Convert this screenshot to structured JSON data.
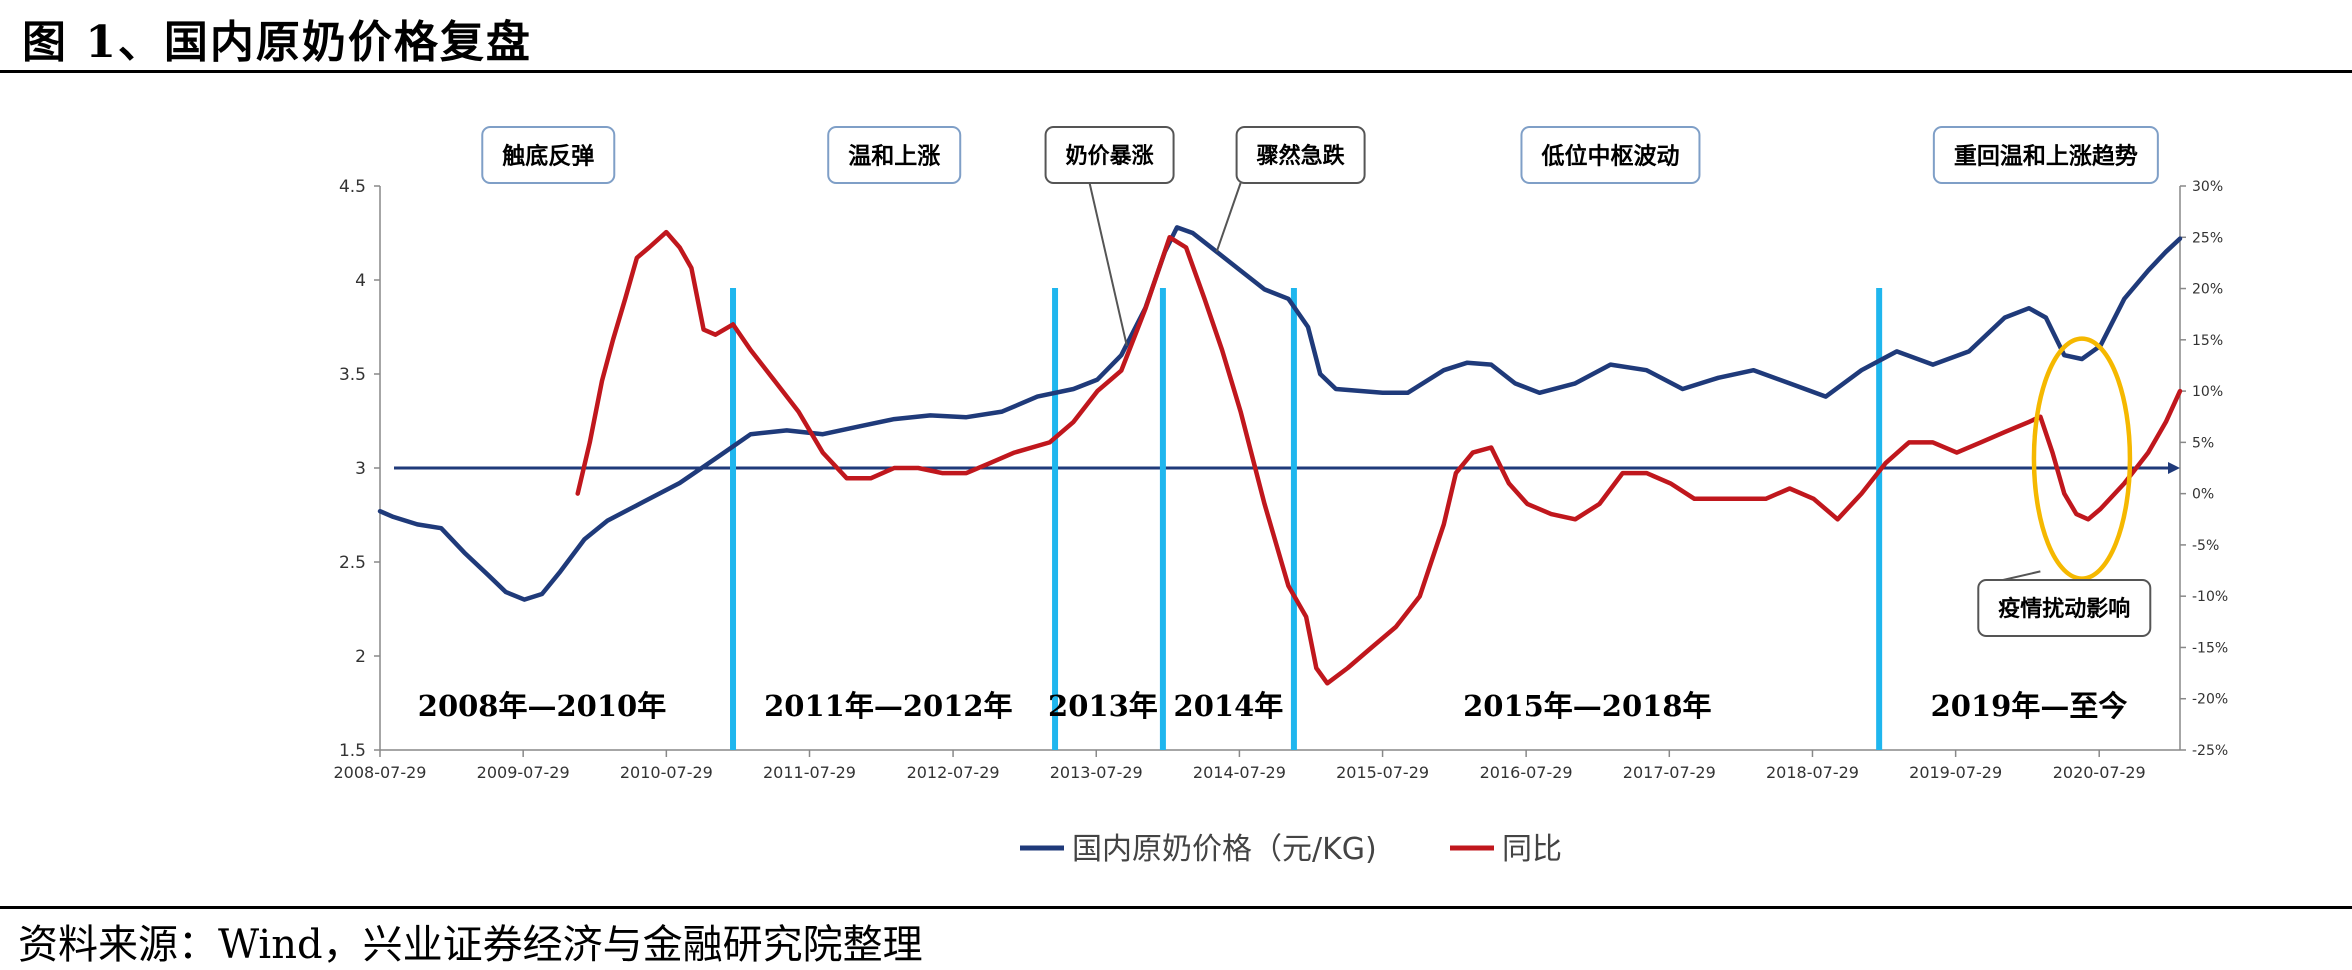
{
  "figure_title": "图 1、国内原奶价格复盘",
  "source_note": "资料来源：Wind，兴业证券经济与金融研究院整理",
  "chart_data": {
    "type": "line",
    "title": "",
    "xlabel": "",
    "ylabel": "",
    "x_tick_labels": [
      "2008-07-29",
      "2009-07-29",
      "2010-07-29",
      "2011-07-29",
      "2012-07-29",
      "2013-07-29",
      "2014-07-29",
      "2015-07-29",
      "2016-07-29",
      "2017-07-29",
      "2018-07-29",
      "2019-07-29",
      "2020-07-29"
    ],
    "xlim": [
      "2008-07-29",
      "2021-02-20"
    ],
    "y_left": {
      "ylim": [
        1.5,
        4.5
      ],
      "ticks": [
        "1.5",
        "2",
        "2.5",
        "3",
        "3.5",
        "4",
        "4.5"
      ]
    },
    "y_right": {
      "ylim": [
        -25,
        30
      ],
      "ticks": [
        "-25%",
        "-20%",
        "-15%",
        "-10%",
        "-5%",
        "0%",
        "5%",
        "10%",
        "15%",
        "20%",
        "25%",
        "30%"
      ]
    },
    "reference_line": {
      "axis": "left",
      "value": 3,
      "color": "#1f3a7a"
    },
    "legend": {
      "position": "bottom-center"
    },
    "series": [
      {
        "name": "国内原奶价格（元/KG)",
        "axis": "left",
        "color": "#1f3a7a",
        "points": [
          [
            "2008-07-29",
            2.77
          ],
          [
            "2008-09-01",
            2.74
          ],
          [
            "2008-11-01",
            2.7
          ],
          [
            "2009-01-01",
            2.68
          ],
          [
            "2009-03-01",
            2.55
          ],
          [
            "2009-05-01",
            2.43
          ],
          [
            "2009-06-15",
            2.34
          ],
          [
            "2009-08-01",
            2.3
          ],
          [
            "2009-09-15",
            2.33
          ],
          [
            "2009-11-01",
            2.45
          ],
          [
            "2010-01-01",
            2.62
          ],
          [
            "2010-03-01",
            2.72
          ],
          [
            "2010-06-01",
            2.82
          ],
          [
            "2010-09-01",
            2.92
          ],
          [
            "2010-12-01",
            3.05
          ],
          [
            "2011-03-01",
            3.18
          ],
          [
            "2011-06-01",
            3.2
          ],
          [
            "2011-09-01",
            3.18
          ],
          [
            "2011-12-01",
            3.22
          ],
          [
            "2012-03-01",
            3.26
          ],
          [
            "2012-06-01",
            3.28
          ],
          [
            "2012-09-01",
            3.27
          ],
          [
            "2012-12-01",
            3.3
          ],
          [
            "2013-03-01",
            3.38
          ],
          [
            "2013-06-01",
            3.42
          ],
          [
            "2013-08-01",
            3.47
          ],
          [
            "2013-10-01",
            3.6
          ],
          [
            "2013-12-01",
            3.85
          ],
          [
            "2014-01-20",
            4.15
          ],
          [
            "2014-02-20",
            4.28
          ],
          [
            "2014-04-01",
            4.25
          ],
          [
            "2014-06-01",
            4.15
          ],
          [
            "2014-08-01",
            4.05
          ],
          [
            "2014-10-01",
            3.95
          ],
          [
            "2014-12-01",
            3.9
          ],
          [
            "2015-01-20",
            3.75
          ],
          [
            "2015-02-20",
            3.5
          ],
          [
            "2015-04-01",
            3.42
          ],
          [
            "2015-07-29",
            3.4
          ],
          [
            "2015-10-01",
            3.4
          ],
          [
            "2016-01-01",
            3.52
          ],
          [
            "2016-03-01",
            3.56
          ],
          [
            "2016-05-01",
            3.55
          ],
          [
            "2016-07-01",
            3.45
          ],
          [
            "2016-09-01",
            3.4
          ],
          [
            "2016-12-01",
            3.45
          ],
          [
            "2017-03-01",
            3.55
          ],
          [
            "2017-06-01",
            3.52
          ],
          [
            "2017-09-01",
            3.42
          ],
          [
            "2017-12-01",
            3.48
          ],
          [
            "2018-03-01",
            3.52
          ],
          [
            "2018-06-01",
            3.45
          ],
          [
            "2018-09-01",
            3.38
          ],
          [
            "2018-12-01",
            3.52
          ],
          [
            "2019-03-01",
            3.62
          ],
          [
            "2019-06-01",
            3.55
          ],
          [
            "2019-09-01",
            3.62
          ],
          [
            "2019-12-01",
            3.8
          ],
          [
            "2020-02-01",
            3.85
          ],
          [
            "2020-03-15",
            3.8
          ],
          [
            "2020-05-01",
            3.6
          ],
          [
            "2020-06-15",
            3.58
          ],
          [
            "2020-08-01",
            3.65
          ],
          [
            "2020-10-01",
            3.9
          ],
          [
            "2020-12-01",
            4.05
          ],
          [
            "2021-01-15",
            4.15
          ],
          [
            "2021-02-20",
            4.22
          ]
        ]
      },
      {
        "name": "同比",
        "axis": "right",
        "color": "#c0171d",
        "points": [
          [
            "2009-12-15",
            0
          ],
          [
            "2010-01-15",
            5
          ],
          [
            "2010-02-15",
            11
          ],
          [
            "2010-03-15",
            15
          ],
          [
            "2010-04-15",
            19
          ],
          [
            "2010-05-15",
            23
          ],
          [
            "2010-06-15",
            24
          ],
          [
            "2010-07-29",
            25.5
          ],
          [
            "2010-09-01",
            24
          ],
          [
            "2010-10-01",
            22
          ],
          [
            "2010-11-01",
            16
          ],
          [
            "2010-12-01",
            15.5
          ],
          [
            "2011-01-15",
            16.5
          ],
          [
            "2011-03-01",
            14
          ],
          [
            "2011-05-01",
            11
          ],
          [
            "2011-07-01",
            8
          ],
          [
            "2011-09-01",
            4
          ],
          [
            "2011-11-01",
            1.5
          ],
          [
            "2012-01-01",
            1.5
          ],
          [
            "2012-03-01",
            2.5
          ],
          [
            "2012-05-01",
            2.5
          ],
          [
            "2012-07-01",
            2
          ],
          [
            "2012-09-01",
            2
          ],
          [
            "2012-11-01",
            3
          ],
          [
            "2013-01-01",
            4
          ],
          [
            "2013-04-01",
            5
          ],
          [
            "2013-06-01",
            7
          ],
          [
            "2013-08-01",
            10
          ],
          [
            "2013-10-01",
            12
          ],
          [
            "2013-12-01",
            18
          ],
          [
            "2014-02-01",
            25
          ],
          [
            "2014-03-15",
            24
          ],
          [
            "2014-05-01",
            19
          ],
          [
            "2014-06-15",
            14
          ],
          [
            "2014-08-01",
            8
          ],
          [
            "2014-10-01",
            -1
          ],
          [
            "2014-12-01",
            -9
          ],
          [
            "2015-01-15",
            -12
          ],
          [
            "2015-02-10",
            -17
          ],
          [
            "2015-03-10",
            -18.5
          ],
          [
            "2015-05-01",
            -17
          ],
          [
            "2015-07-01",
            -15
          ],
          [
            "2015-09-01",
            -13
          ],
          [
            "2015-11-01",
            -10
          ],
          [
            "2016-01-01",
            -3
          ],
          [
            "2016-02-01",
            2
          ],
          [
            "2016-03-15",
            4
          ],
          [
            "2016-05-01",
            4.5
          ],
          [
            "2016-06-15",
            1
          ],
          [
            "2016-08-01",
            -1
          ],
          [
            "2016-10-01",
            -2
          ],
          [
            "2016-12-01",
            -2.5
          ],
          [
            "2017-02-01",
            -1
          ],
          [
            "2017-04-01",
            2
          ],
          [
            "2017-06-01",
            2
          ],
          [
            "2017-08-01",
            1
          ],
          [
            "2017-10-01",
            -0.5
          ],
          [
            "2017-12-01",
            -0.5
          ],
          [
            "2018-02-01",
            -0.5
          ],
          [
            "2018-04-01",
            -0.5
          ],
          [
            "2018-06-01",
            0.5
          ],
          [
            "2018-08-01",
            -0.5
          ],
          [
            "2018-10-01",
            -2.5
          ],
          [
            "2018-12-01",
            0
          ],
          [
            "2019-02-01",
            3
          ],
          [
            "2019-04-01",
            5
          ],
          [
            "2019-06-01",
            5
          ],
          [
            "2019-08-01",
            4
          ],
          [
            "2019-10-01",
            5
          ],
          [
            "2019-12-01",
            6
          ],
          [
            "2020-02-01",
            7
          ],
          [
            "2020-03-01",
            7.5
          ],
          [
            "2020-04-01",
            4
          ],
          [
            "2020-05-01",
            0
          ],
          [
            "2020-06-01",
            -2
          ],
          [
            "2020-07-01",
            -2.5
          ],
          [
            "2020-08-01",
            -1.5
          ],
          [
            "2020-10-01",
            1
          ],
          [
            "2020-12-01",
            4
          ],
          [
            "2021-01-15",
            7
          ],
          [
            "2021-02-20",
            10
          ]
        ]
      }
    ],
    "period_dividers": [
      "2011-01-15",
      "2013-04-15",
      "2014-01-15",
      "2014-12-15",
      "2019-01-15"
    ],
    "period_labels": [
      {
        "text": "2008年—2010年",
        "at": "2009-09-15"
      },
      {
        "text": "2011年—2012年",
        "at": "2012-02-15"
      },
      {
        "text": "2013年",
        "at": "2013-08-15"
      },
      {
        "text": "2014年",
        "at": "2014-07-01"
      },
      {
        "text": "2015年—2018年",
        "at": "2017-01-01"
      },
      {
        "text": "2019年—至今",
        "at": "2020-02-01"
      }
    ],
    "phase_labels": [
      {
        "text": "触底反弹",
        "at": "2009-10-01"
      },
      {
        "text": "温和上涨",
        "at": "2012-03-01"
      },
      {
        "text": "低位中枢波动",
        "at": "2017-03-01"
      },
      {
        "text": "重回温和上涨趋势",
        "at": "2020-03-15"
      }
    ],
    "callouts": [
      {
        "text": "奶价暴涨",
        "at": "2013-09-01",
        "points_to": [
          "2013-10-15",
          3.65
        ]
      },
      {
        "text": "骤然急跌",
        "at": "2015-01-01",
        "points_to": [
          "2014-06-01",
          4.15
        ]
      },
      {
        "text": "疫情扰动影响",
        "at": "2020-05-01",
        "points_to": [
          "2020-03-01",
          2.45
        ]
      }
    ],
    "highlight_ellipse": {
      "center": [
        "2020-06-15",
        3.05
      ],
      "color": "#f5b800"
    }
  }
}
